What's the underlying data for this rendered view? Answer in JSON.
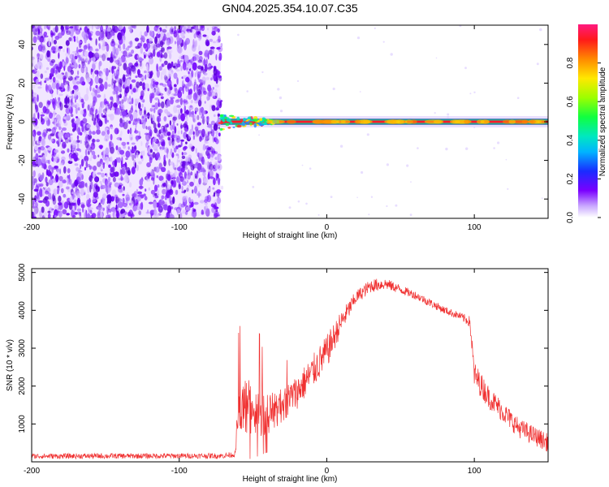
{
  "title": "GN04.2025.354.10.07.C35",
  "chart_data": [
    {
      "type": "heatmap",
      "title": "GN04.2025.354.10.07.C35",
      "xlabel": "Height of straight line (km)",
      "ylabel": "Frequency (Hz)",
      "xlim": [
        -200,
        150
      ],
      "ylim": [
        -50,
        50
      ],
      "x_ticks": [
        "-200",
        "-100",
        "0",
        "100"
      ],
      "x_tick_values": [
        -200,
        -100,
        0,
        100
      ],
      "y_ticks": [
        "-40",
        "-20",
        "0",
        "20",
        "40"
      ],
      "y_tick_values": [
        -40,
        -20,
        0,
        20,
        40
      ],
      "noise_region_x": [
        -200,
        -72
      ],
      "signal_region_x": [
        -72,
        150
      ],
      "signal_frequency_hz": 0,
      "colorbar": {
        "label": "Normalized spectral amplitude",
        "range": [
          0,
          1
        ],
        "ticks": [
          "0.0",
          "0.2",
          "0.4",
          "0.6",
          "0.8"
        ],
        "tick_values": [
          0,
          0.2,
          0.4,
          0.6,
          0.8
        ]
      },
      "grid": false
    },
    {
      "type": "line",
      "xlabel": "Height of straight line (km)",
      "ylabel": "SNR (10 * v/v)",
      "xlim": [
        -200,
        150
      ],
      "ylim": [
        0,
        5100
      ],
      "x_ticks": [
        "-200",
        "-100",
        "0",
        "100"
      ],
      "x_tick_values": [
        -200,
        -100,
        0,
        100
      ],
      "y_ticks": [
        "1000",
        "2000",
        "3000",
        "4000",
        "5000"
      ],
      "y_tick_values": [
        1000,
        2000,
        3000,
        4000,
        5000
      ],
      "color": "#f03030",
      "grid": false,
      "envelope": {
        "x": [
          -200,
          -70,
          -62,
          -60,
          -55,
          -50,
          -40,
          -30,
          -20,
          -10,
          0,
          10,
          20,
          30,
          40,
          50,
          60,
          70,
          80,
          90,
          97,
          100,
          110,
          120,
          130,
          150
        ],
        "mean": [
          150,
          160,
          200,
          1300,
          1500,
          1350,
          1250,
          1500,
          1850,
          2350,
          2900,
          3700,
          4350,
          4650,
          4700,
          4550,
          4400,
          4200,
          4000,
          3850,
          3700,
          2300,
          1700,
          1300,
          900,
          500
        ],
        "noise": [
          70,
          70,
          80,
          650,
          800,
          700,
          550,
          450,
          450,
          450,
          450,
          300,
          180,
          180,
          150,
          120,
          110,
          110,
          100,
          100,
          150,
          350,
          300,
          280,
          260,
          240
        ]
      }
    }
  ]
}
